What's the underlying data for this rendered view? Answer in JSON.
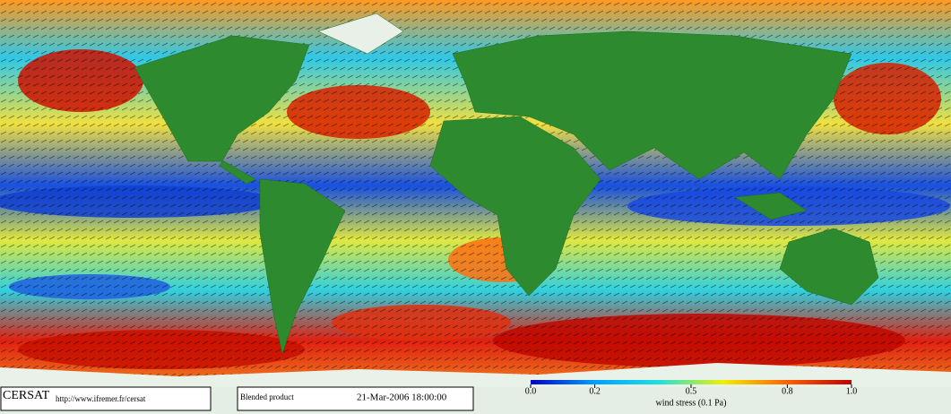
{
  "footer": {
    "logo": "CERSAT",
    "url": "http://www.ifremer.fr/cersat",
    "product": "Blended product",
    "date": "21-Mar-2006 18:00:00"
  },
  "colorbar": {
    "title": "wind stress (0.1 Pa)",
    "lim": [
      0,
      1
    ],
    "ticks": [
      {
        "value": 0,
        "label": "0.0"
      },
      0.2,
      0.5,
      0.8,
      {
        "value": 1,
        "label": "1.0"
      }
    ],
    "colors": [
      "#0000c8",
      "#00a0ff",
      "#20e0e0",
      "#f0f000",
      "#ff6000",
      "#c00000"
    ]
  }
}
